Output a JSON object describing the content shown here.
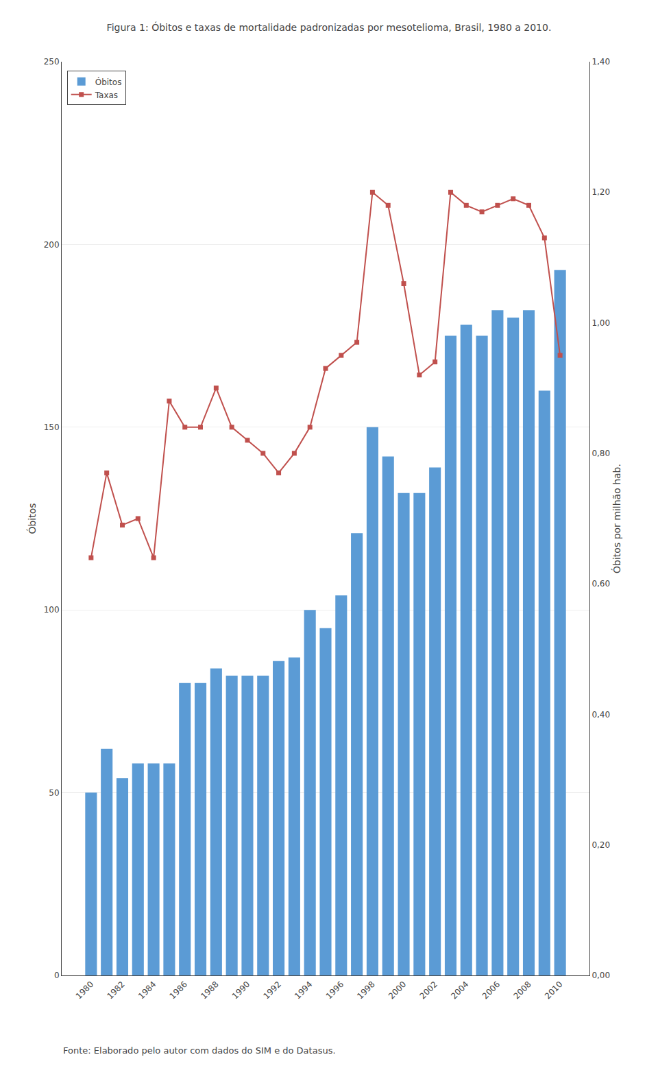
{
  "chart_data": {
    "type": "bar",
    "title": "Figura 1: Óbitos e taxas de mortalidade padronizadas por mesotelioma, Brasil, 1980 a 2010.",
    "categories": [
      "1980",
      null,
      "1982",
      null,
      "1984",
      null,
      "1986",
      null,
      "1988",
      null,
      "1990",
      null,
      "1992",
      null,
      "1994",
      null,
      "1996",
      null,
      "1998",
      null,
      "2000",
      null,
      "2002",
      null,
      "2004",
      null,
      "2006",
      null,
      "2008",
      null,
      "2010"
    ],
    "series": [
      {
        "name": "Óbitos",
        "type": "bar",
        "color": "#5B9BD5",
        "values": [
          50,
          62,
          54,
          58,
          58,
          58,
          80,
          80,
          84,
          82,
          82,
          82,
          86,
          87,
          100,
          95,
          104,
          121,
          150,
          142,
          132,
          132,
          139,
          175,
          178,
          175,
          182,
          180,
          182,
          160,
          193
        ]
      },
      {
        "name": "Taxas",
        "type": "line",
        "axis": "y2",
        "color": "#C0504D",
        "marker": "square",
        "line_style": "solid",
        "values": [
          0.64,
          0.77,
          0.69,
          0.7,
          0.64,
          0.88,
          0.84,
          0.84,
          0.9,
          0.84,
          0.82,
          0.8,
          0.77,
          0.8,
          0.84,
          0.93,
          0.95,
          0.97,
          1.2,
          1.18,
          1.06,
          0.92,
          0.94,
          1.2,
          1.18,
          1.17,
          1.18,
          1.19,
          1.18,
          1.13,
          0.95
        ]
      }
    ],
    "ylabel": "Óbitos",
    "y2label": "Óbitos por milhão hab.",
    "ylim": [
      0,
      250
    ],
    "yticks": [
      0,
      50,
      100,
      150,
      200,
      250
    ],
    "y2lim": [
      0,
      1.4
    ],
    "y2ticks": [
      {
        "value": 0,
        "label": "0,00"
      },
      {
        "value": 0.2,
        "label": "0,20"
      },
      {
        "value": 0.4,
        "label": "0,40"
      },
      {
        "value": 0.6,
        "label": "0,60"
      },
      {
        "value": 0.8,
        "label": "0,80"
      },
      {
        "value": 1.0,
        "label": "1,00"
      },
      {
        "value": 1.2,
        "label": "1,20"
      },
      {
        "value": 1.4,
        "label": "1,40"
      }
    ],
    "grid": true,
    "legend": "upper left",
    "annotations": [
      "Fonte: Elaborado pelo autor com dados do SIM e do Datasus."
    ]
  }
}
